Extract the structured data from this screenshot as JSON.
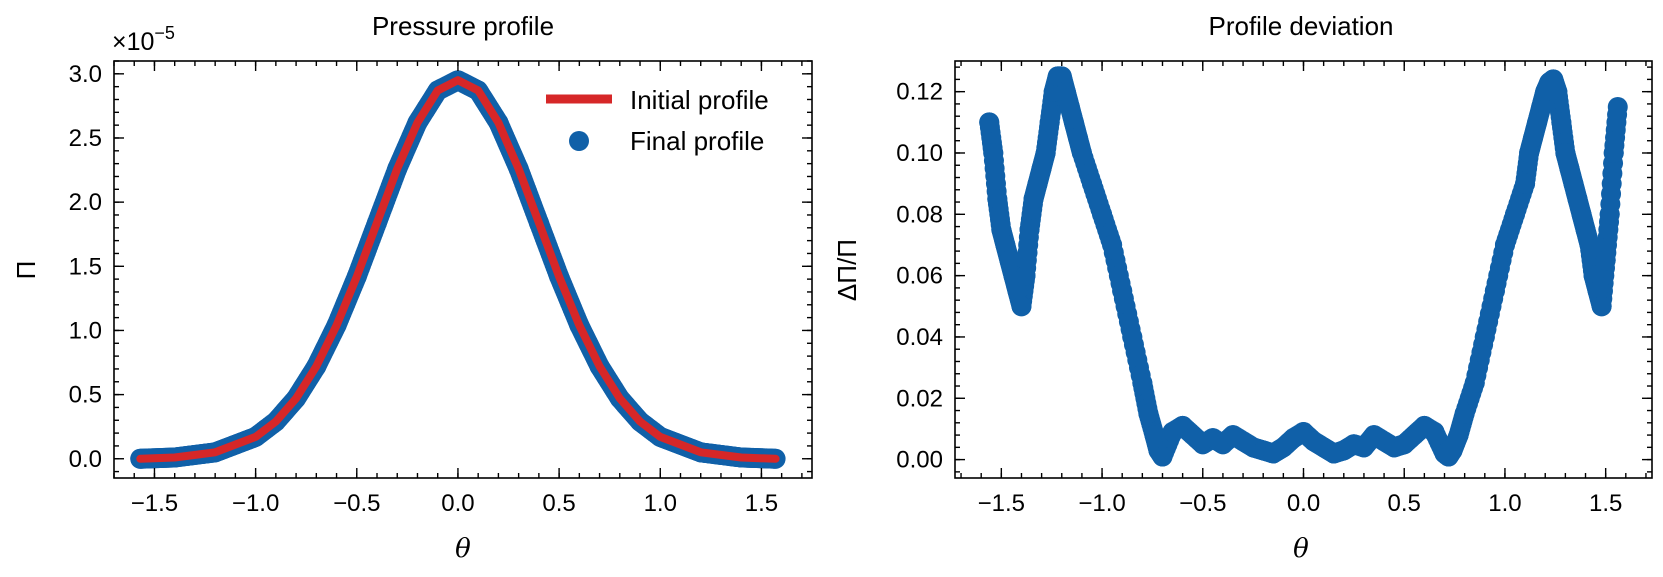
{
  "colors": {
    "initial": "#d62728",
    "final": "#1060a8",
    "axis": "#000000"
  },
  "chart_data": [
    {
      "type": "line",
      "title": "Pressure profile",
      "xlabel": "θ",
      "ylabel": "Π",
      "offset_label": "×10",
      "offset_exponent": "−5",
      "xlim": [
        -1.7,
        1.75
      ],
      "ylim": [
        -0.15,
        3.1
      ],
      "xticks": [
        -1.5,
        -1.0,
        -0.5,
        0.0,
        0.5,
        1.0,
        1.5
      ],
      "xtick_labels": [
        "−1.5",
        "−1.0",
        "−0.5",
        "0.0",
        "0.5",
        "1.0",
        "1.5"
      ],
      "yticks": [
        0.0,
        0.5,
        1.0,
        1.5,
        2.0,
        2.5,
        3.0
      ],
      "ytick_labels": [
        "0.0",
        "0.5",
        "1.0",
        "1.5",
        "2.0",
        "2.5",
        "3.0"
      ],
      "legend": {
        "placement": "top-right",
        "entries": [
          "Initial profile",
          "Final profile"
        ]
      },
      "series": [
        {
          "name": "Initial profile",
          "kind": "line",
          "x": [
            -1.57,
            -1.4,
            -1.2,
            -1.0,
            -0.9,
            -0.8,
            -0.7,
            -0.6,
            -0.5,
            -0.4,
            -0.3,
            -0.2,
            -0.1,
            0.0,
            0.1,
            0.2,
            0.3,
            0.4,
            0.5,
            0.6,
            0.7,
            0.8,
            0.9,
            1.0,
            1.2,
            1.4,
            1.57
          ],
          "y": [
            0.0,
            0.01,
            0.05,
            0.17,
            0.29,
            0.47,
            0.72,
            1.04,
            1.42,
            1.84,
            2.26,
            2.62,
            2.87,
            2.95,
            2.87,
            2.62,
            2.26,
            1.84,
            1.42,
            1.04,
            0.72,
            0.47,
            0.29,
            0.17,
            0.05,
            0.01,
            0.0
          ]
        },
        {
          "name": "Final profile",
          "kind": "scatter",
          "x": [
            -1.57,
            -1.4,
            -1.2,
            -1.0,
            -0.9,
            -0.8,
            -0.7,
            -0.6,
            -0.5,
            -0.4,
            -0.3,
            -0.2,
            -0.1,
            0.0,
            0.1,
            0.2,
            0.3,
            0.4,
            0.5,
            0.6,
            0.7,
            0.8,
            0.9,
            1.0,
            1.2,
            1.4,
            1.57
          ],
          "y": [
            0.0,
            0.01,
            0.05,
            0.17,
            0.29,
            0.47,
            0.72,
            1.04,
            1.42,
            1.84,
            2.26,
            2.62,
            2.87,
            2.95,
            2.87,
            2.62,
            2.26,
            1.84,
            1.42,
            1.04,
            0.72,
            0.47,
            0.29,
            0.17,
            0.05,
            0.01,
            0.0
          ]
        }
      ]
    },
    {
      "type": "scatter",
      "title": "Profile deviation",
      "xlabel": "θ",
      "ylabel": "ΔΠ/Π",
      "xlim": [
        -1.73,
        1.73
      ],
      "ylim": [
        -0.006,
        0.13
      ],
      "xticks": [
        -1.5,
        -1.0,
        -0.5,
        0.0,
        0.5,
        1.0,
        1.5
      ],
      "xtick_labels": [
        "−1.5",
        "−1.0",
        "−0.5",
        "0.0",
        "0.5",
        "1.0",
        "1.5"
      ],
      "yticks": [
        0.0,
        0.02,
        0.04,
        0.06,
        0.08,
        0.1,
        0.12
      ],
      "ytick_labels": [
        "0.00",
        "0.02",
        "0.04",
        "0.06",
        "0.08",
        "0.10",
        "0.12"
      ],
      "series": [
        {
          "name": "",
          "x": [
            -1.56,
            -1.54,
            -1.52,
            -1.5,
            -1.48,
            -1.46,
            -1.44,
            -1.42,
            -1.4,
            -1.38,
            -1.36,
            -1.34,
            -1.32,
            -1.3,
            -1.28,
            -1.26,
            -1.24,
            -1.22,
            -1.2,
            -1.18,
            -1.16,
            -1.14,
            -1.12,
            -1.1,
            -1.05,
            -1.0,
            -0.95,
            -0.9,
            -0.85,
            -0.8,
            -0.77,
            -0.74,
            -0.72,
            -0.7,
            -0.65,
            -0.6,
            -0.55,
            -0.5,
            -0.45,
            -0.4,
            -0.35,
            -0.3,
            -0.25,
            -0.2,
            -0.15,
            -0.1,
            -0.05,
            0.0,
            0.05,
            0.1,
            0.15,
            0.2,
            0.25,
            0.3,
            0.35,
            0.4,
            0.45,
            0.5,
            0.55,
            0.6,
            0.65,
            0.7,
            0.72,
            0.74,
            0.77,
            0.8,
            0.85,
            0.9,
            0.95,
            1.0,
            1.05,
            1.1,
            1.12,
            1.14,
            1.16,
            1.18,
            1.2,
            1.22,
            1.24,
            1.26,
            1.28,
            1.3,
            1.32,
            1.34,
            1.36,
            1.38,
            1.4,
            1.42,
            1.44,
            1.46,
            1.48,
            1.5,
            1.52,
            1.54,
            1.56
          ],
          "y": [
            0.11,
            0.1,
            0.085,
            0.075,
            0.07,
            0.065,
            0.06,
            0.055,
            0.05,
            0.06,
            0.075,
            0.085,
            0.09,
            0.095,
            0.1,
            0.11,
            0.12,
            0.125,
            0.125,
            0.12,
            0.115,
            0.11,
            0.105,
            0.1,
            0.09,
            0.08,
            0.07,
            0.055,
            0.04,
            0.025,
            0.015,
            0.008,
            0.003,
            0.001,
            0.009,
            0.011,
            0.008,
            0.005,
            0.007,
            0.005,
            0.008,
            0.006,
            0.004,
            0.003,
            0.002,
            0.004,
            0.007,
            0.009,
            0.006,
            0.004,
            0.002,
            0.003,
            0.005,
            0.004,
            0.008,
            0.006,
            0.004,
            0.005,
            0.008,
            0.011,
            0.009,
            0.002,
            0.001,
            0.003,
            0.008,
            0.015,
            0.025,
            0.04,
            0.055,
            0.07,
            0.08,
            0.09,
            0.1,
            0.105,
            0.11,
            0.115,
            0.12,
            0.123,
            0.124,
            0.12,
            0.11,
            0.1,
            0.095,
            0.09,
            0.085,
            0.08,
            0.075,
            0.07,
            0.06,
            0.055,
            0.05,
            0.065,
            0.08,
            0.1,
            0.115
          ]
        }
      ]
    }
  ]
}
